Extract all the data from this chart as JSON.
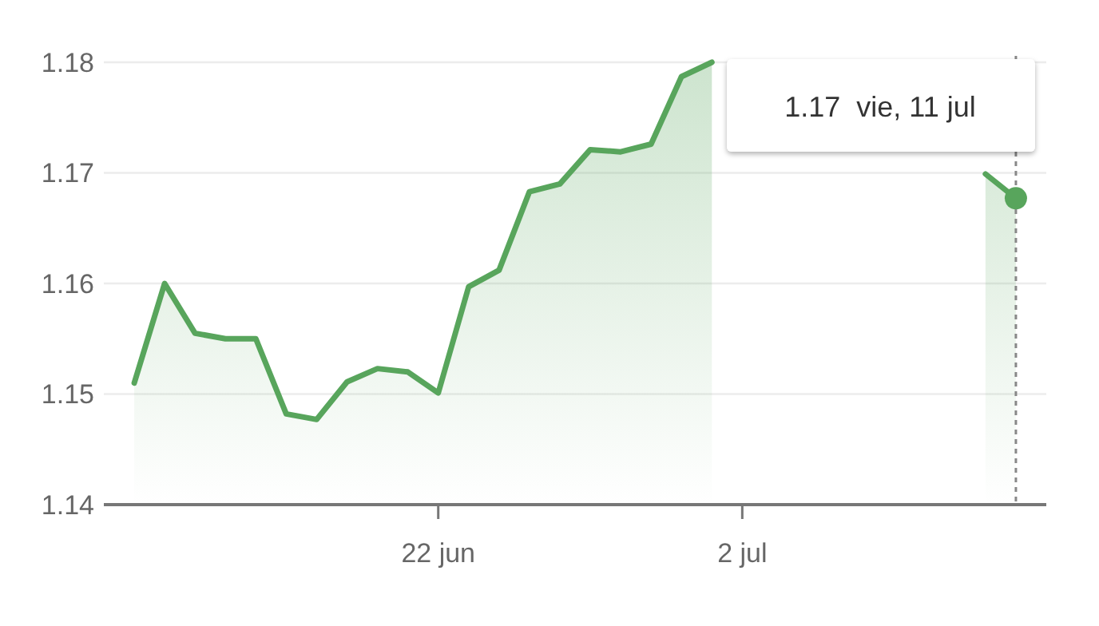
{
  "chart_data": {
    "type": "area",
    "x": [
      "--06-12",
      "--06-13",
      "--06-14",
      "--06-15",
      "--06-16",
      "--06-17",
      "--06-18",
      "--06-19",
      "--06-20",
      "--06-21",
      "--06-22",
      "--06-23",
      "--06-24",
      "--06-25",
      "--06-26",
      "--06-27",
      "--06-28",
      "--06-29",
      "--06-30",
      "--07-01",
      "--07-02",
      "--07-03",
      "--07-04",
      "--07-05",
      "--07-06",
      "--07-07",
      "--07-08",
      "--07-09",
      "--07-10",
      "--07-11"
    ],
    "series": [
      {
        "color": "#58a55c",
        "values": [
          1.151,
          1.16,
          1.1555,
          1.155,
          1.155,
          1.1482,
          1.1477,
          1.1511,
          1.1523,
          1.152,
          1.1501,
          1.1597,
          1.1612,
          1.1683,
          1.169,
          1.1721,
          1.1719,
          1.1726,
          1.1787,
          1.18,
          null,
          null,
          null,
          null,
          null,
          null,
          null,
          null,
          1.1699,
          1.1677
        ]
      }
    ],
    "xlim": [
      "--06-11",
      "--07-12"
    ],
    "xticks": [
      {
        "value": "--06-22",
        "label": "22 jun"
      },
      {
        "value": "--07-02",
        "label": "2 jul"
      }
    ],
    "ylim": [
      1.14,
      1.18
    ],
    "yticks": [
      1.14,
      1.15,
      1.16,
      1.17,
      1.18
    ],
    "grid": "y",
    "marker": "none",
    "ref_lines": [
      {
        "axis": "x",
        "value": "--07-11",
        "line_style": "dotted",
        "color": "#888888"
      }
    ],
    "annotations": [
      {
        "text": "1.17  vie, 11 jul",
        "x": "--07-11",
        "y": 1.1677
      }
    ]
  }
}
